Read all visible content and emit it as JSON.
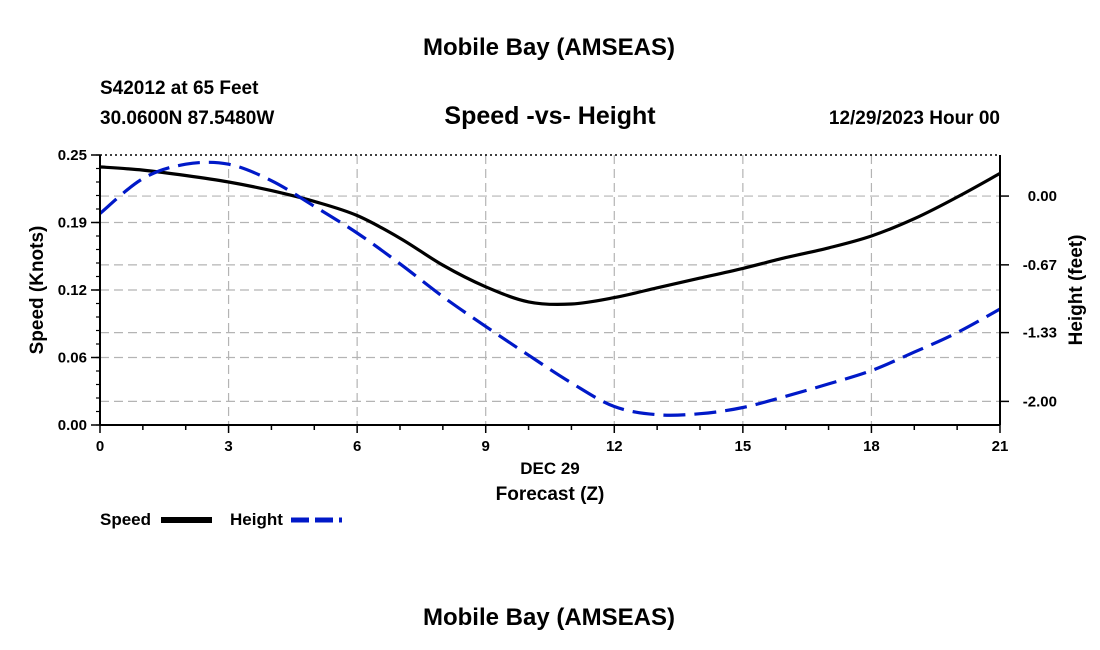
{
  "header": {
    "main_title": "Mobile Bay (AMSEAS)",
    "station": "S42012 at 65 Feet",
    "location": "30.0600N  87.5480W",
    "chart_title": "Speed -vs- Height",
    "datetime": "12/29/2023 Hour 00"
  },
  "footer": {
    "repeat_title": "Mobile Bay (AMSEAS)"
  },
  "chart_data": {
    "type": "line",
    "title": "Speed -vs- Height",
    "xlabel": "Forecast (Z)",
    "xlabel_date": "DEC 29",
    "ylabel": "Speed (Knots)",
    "y2label": "Height (feet)",
    "xlim": [
      0,
      21
    ],
    "ylim": [
      0,
      0.25
    ],
    "y2lim": [
      -2.23,
      0.4
    ],
    "grid": true,
    "x_ticks": [
      "0",
      "3",
      "6",
      "9",
      "12",
      "15",
      "18",
      "21"
    ],
    "x_tick_values": [
      0,
      3,
      6,
      9,
      12,
      15,
      18,
      21
    ],
    "y_ticks": [
      "0.00",
      "0.06",
      "0.12",
      "0.19",
      "0.25"
    ],
    "y_tick_values": [
      0.0,
      0.0625,
      0.125,
      0.1875,
      0.25
    ],
    "y2_ticks": [
      "0.00",
      "-0.67",
      "-1.33",
      "-2.00"
    ],
    "y2_tick_values": [
      0.0,
      -0.67,
      -1.33,
      -2.0
    ],
    "series": [
      {
        "name": "Speed",
        "axis": "left",
        "color": "#000000",
        "dash": false,
        "x": [
          0,
          1,
          2,
          3,
          4,
          5,
          6,
          7,
          8,
          9,
          10,
          11,
          12,
          13,
          14,
          15,
          16,
          17,
          18,
          19,
          20,
          21
        ],
        "values": [
          0.239,
          0.236,
          0.231,
          0.225,
          0.217,
          0.207,
          0.194,
          0.173,
          0.148,
          0.128,
          0.114,
          0.112,
          0.118,
          0.127,
          0.136,
          0.145,
          0.155,
          0.164,
          0.175,
          0.191,
          0.211,
          0.233
        ]
      },
      {
        "name": "Height",
        "axis": "right",
        "color": "#0019c8",
        "dash": true,
        "x": [
          0,
          1,
          2,
          3,
          4,
          5,
          6,
          7,
          8,
          9,
          10,
          11,
          12,
          13,
          14,
          15,
          16,
          17,
          18,
          19,
          20,
          21
        ],
        "values": [
          -0.17,
          0.17,
          0.31,
          0.31,
          0.15,
          -0.1,
          -0.36,
          -0.66,
          -0.98,
          -1.27,
          -1.55,
          -1.82,
          -2.05,
          -2.13,
          -2.12,
          -2.06,
          -1.95,
          -1.83,
          -1.7,
          -1.52,
          -1.33,
          -1.1
        ]
      }
    ],
    "legend": {
      "placement": "bottom-left",
      "entries": [
        "Speed",
        "Height"
      ]
    }
  }
}
